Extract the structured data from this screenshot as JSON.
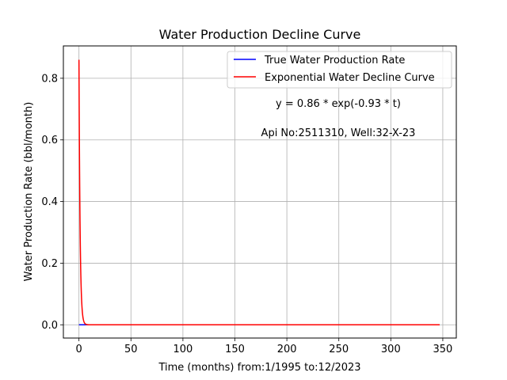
{
  "chart_data": {
    "type": "line",
    "title": "Water Production Decline Curve",
    "xlabel": "Time (months) from:1/1995 to:12/2023",
    "ylabel": "Water Production Rate (bbl/month)",
    "xlim": [
      -15,
      363
    ],
    "ylim": [
      -0.043,
      0.905
    ],
    "xticks": [
      0,
      50,
      100,
      150,
      200,
      250,
      300,
      350
    ],
    "yticks": [
      0.0,
      0.2,
      0.4,
      0.6,
      0.8
    ],
    "xtick_labels": [
      "0",
      "50",
      "100",
      "150",
      "200",
      "250",
      "300",
      "350"
    ],
    "ytick_labels": [
      "0.0",
      "0.2",
      "0.4",
      "0.6",
      "0.8"
    ],
    "grid": true,
    "legend_position": "top-right",
    "series": [
      {
        "name": "True Water Production Rate",
        "color": "#0000ff",
        "x": [
          0,
          5,
          10,
          50,
          100,
          150,
          200,
          250,
          300,
          347
        ],
        "y": [
          0,
          0,
          0,
          0,
          0,
          0,
          0,
          0,
          0,
          0
        ]
      },
      {
        "name": "Exponential Water Decline Curve",
        "color": "#ff0000",
        "model": {
          "a": 0.86,
          "b": -0.93
        },
        "x_range": [
          0,
          347
        ]
      }
    ],
    "annotations": [
      "y = 0.86 * exp(-0.93 * t)",
      "Api No:2511310, Well:32-X-23"
    ]
  }
}
